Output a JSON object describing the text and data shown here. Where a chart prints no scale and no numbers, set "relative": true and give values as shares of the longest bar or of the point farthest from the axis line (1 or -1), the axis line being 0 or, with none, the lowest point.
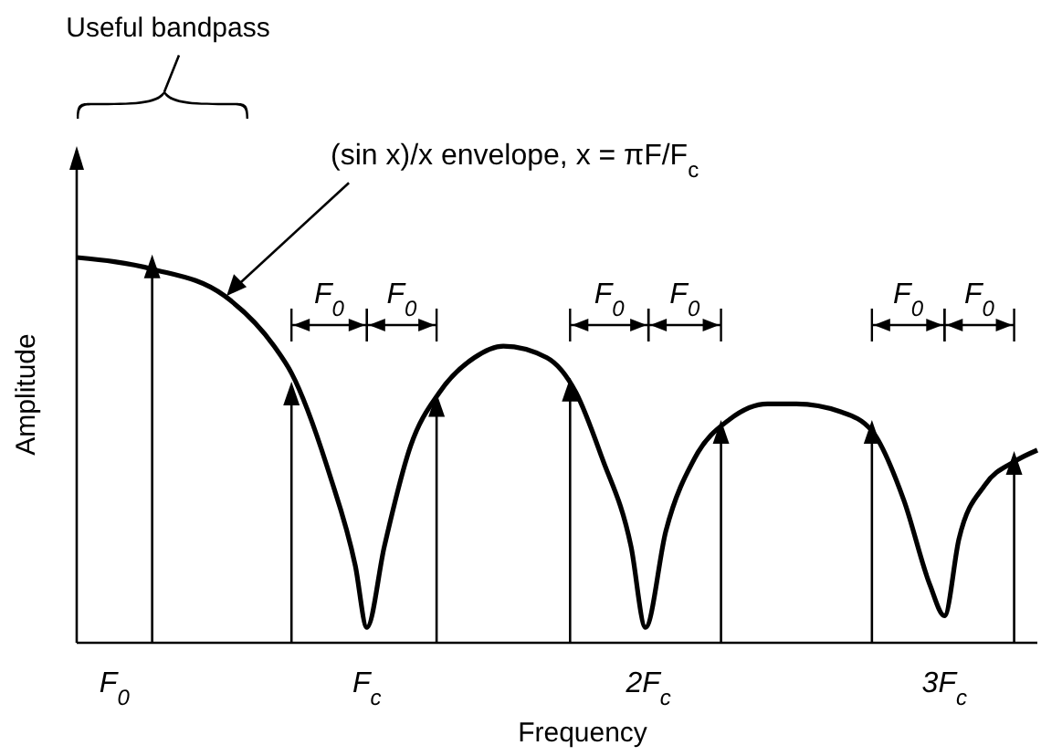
{
  "chart_data": {
    "type": "line",
    "relative": true,
    "xlabel": "Frequency",
    "ylabel": "Amplitude",
    "tick_labels": "x",
    "xlim": [
      0,
      3.31
    ],
    "xticks": [
      {
        "value": 0.13,
        "label": "F$_{0}$"
      },
      {
        "value": 1,
        "label": "F$_{c}$"
      },
      {
        "value": 1.97,
        "label": "2F$_{c}$"
      },
      {
        "value": 2.99,
        "label": "3F$_{c}$"
      }
    ],
    "series": [
      {
        "color": "#000000",
        "marker": "none",
        "x": [
          0,
          0.26,
          0.51,
          0.68,
          0.74,
          0.87,
          0.96,
          1.0,
          1.06,
          1.15,
          1.25,
          1.37,
          1.47,
          1.62,
          1.72,
          1.81,
          1.91,
          1.96,
          2.03,
          2.13,
          2.25,
          2.38,
          2.48,
          2.63,
          2.74,
          2.85,
          2.94,
          2.99,
          3.04,
          3.13,
          3.23,
          3.31
        ],
        "values": [
          1.0,
          0.97,
          0.9,
          0.77,
          0.7,
          0.44,
          0.2,
          0.04,
          0.25,
          0.51,
          0.65,
          0.74,
          0.77,
          0.74,
          0.65,
          0.48,
          0.25,
          0.04,
          0.29,
          0.48,
          0.58,
          0.62,
          0.62,
          0.6,
          0.55,
          0.37,
          0.15,
          0.07,
          0.27,
          0.41,
          0.47,
          0.5
        ]
      },
      {
        "type": "lollipop",
        "color": "#000000",
        "marker": "triangle",
        "x": [
          0.26,
          0.74,
          1.24,
          1.7,
          2.22,
          2.74,
          3.23
        ],
        "values": [
          0.97,
          0.64,
          0.61,
          0.65,
          0.54,
          0.54,
          0.46
        ]
      }
    ],
    "annotations": [
      "Useful bandpass",
      {
        "text": "(sin x)/x envelope, x = πF/F$_{c}$",
        "x": 0.51,
        "y": 0.9
      },
      "F$_{0}$",
      "F$_{0}$",
      "F$_{0}$",
      "F$_{0}$",
      "F$_{0}$",
      "F$_{0}$"
    ]
  }
}
